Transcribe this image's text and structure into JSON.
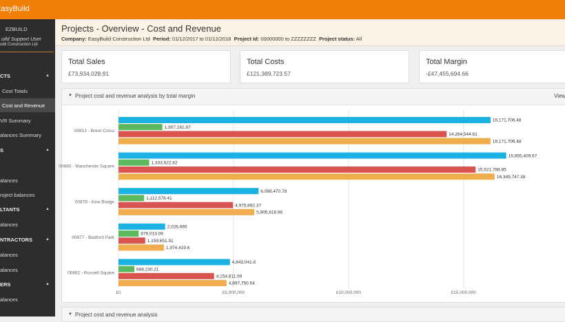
{
  "app": {
    "brand": "EasyBuild"
  },
  "sidebar": {
    "app_name": "EZBUILD",
    "user": "uild Support User",
    "company": "uild Construction Ltd",
    "items": [
      "CTS",
      "Cost Totals",
      "Cost and Revenue",
      "VR Summary",
      "alances Summary",
      "S",
      "alances",
      "roject balances",
      "LTANTS",
      "alances",
      "NTRACTORS",
      "alances",
      "alances",
      "ERS",
      "alances"
    ]
  },
  "header": {
    "title": "Projects - Overview - Cost and Revenue",
    "filters": [
      {
        "label": "Company:",
        "value": "EasyBuild Construction Ltd"
      },
      {
        "label": "Period:",
        "value": "01/12/2017 to 01/12/2018"
      },
      {
        "label": "Project Id:",
        "value": "00000000 to ZZZZZZZZ"
      },
      {
        "label": "Project status:",
        "value": "All"
      }
    ]
  },
  "cards": [
    {
      "title": "Total Sales",
      "value": "£73,934,028.91"
    },
    {
      "title": "Total Costs",
      "value": "£121,389,723.57"
    },
    {
      "title": "Total Margin",
      "value": "-£47,455,694.66"
    }
  ],
  "panel": {
    "title": "Project cost and revenue analysis by total margin",
    "action": "View"
  },
  "panel2": {
    "title": "Project cost and revenue analysis"
  },
  "chart_data": {
    "type": "hbar",
    "categories": [
      "00813 - Brent Cross",
      "00860 - Manchester Square",
      "00878 - Kew Bridge",
      "00877 - Bedford Park",
      "00862 - Russell Square"
    ],
    "series": [
      {
        "color": "#1bb1e3",
        "values": [
          16171706.48,
          16855409.67,
          6088470.78,
          2026665,
          4843041.8
        ],
        "value_labels": [
          "16,171,706.48",
          "16,855,409.67",
          "6,088,470.78",
          "2,026,665",
          "4,843,041.8"
        ]
      },
      {
        "color": "#5cb85c",
        "values": [
          1907161.87,
          1333622.82,
          1112578.41,
          876013.09,
          688230.21
        ],
        "value_labels": [
          "1,907,161.87",
          "1,333,622.82",
          "1,112,578.41",
          "876,013.09",
          "688,230.21"
        ]
      },
      {
        "color": "#d9534f",
        "values": [
          14264544.61,
          15521786.85,
          4975892.37,
          1159651.91,
          4154811.59
        ],
        "value_labels": [
          "14,264,544.61",
          "15,521,786.85",
          "4,975,892.37",
          "1,159,651.91",
          "4,154,811.59"
        ]
      },
      {
        "color": "#f0ad4e",
        "values": [
          16171706.48,
          16349747.38,
          5905816.66,
          1974419.6,
          4697750.54
        ],
        "value_labels": [
          "16,171,706.48",
          "16,349,747.38",
          "5,905,816.66",
          "1,974,419.6",
          "4,697,750.54"
        ]
      }
    ],
    "xlim": [
      0,
      19350000
    ],
    "xticks": [
      {
        "value": 0,
        "label": "£0"
      },
      {
        "value": 5000000,
        "label": "£5,000,000"
      },
      {
        "value": 10000000,
        "label": "£10,000,000"
      },
      {
        "value": 15000000,
        "label": "£15,000,000"
      }
    ],
    "grid": true
  }
}
